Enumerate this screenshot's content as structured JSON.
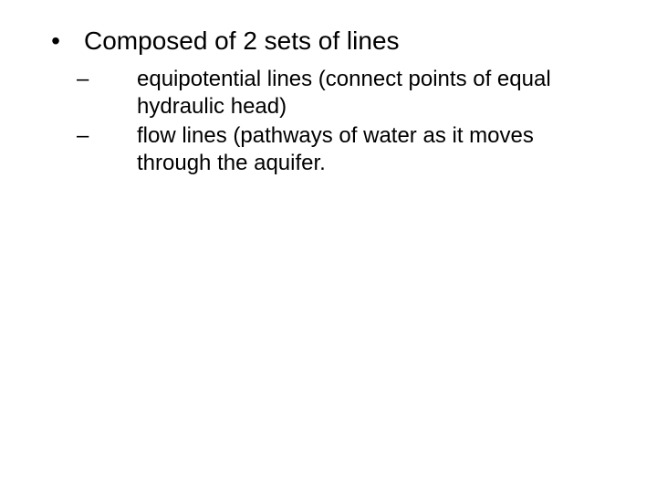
{
  "main": {
    "bullet": "•",
    "text": "Composed of 2 sets of lines"
  },
  "subitems": [
    {
      "bullet": "–",
      "text": "equipotential lines (connect points of equal hydraulic head)"
    },
    {
      "bullet": "–",
      "text": "flow lines (pathways of water as it moves through the aquifer."
    }
  ],
  "style": {
    "background_color": "#ffffff",
    "text_color": "#000000",
    "main_fontsize": 28,
    "sub_fontsize": 24,
    "font_family": "Arial"
  }
}
